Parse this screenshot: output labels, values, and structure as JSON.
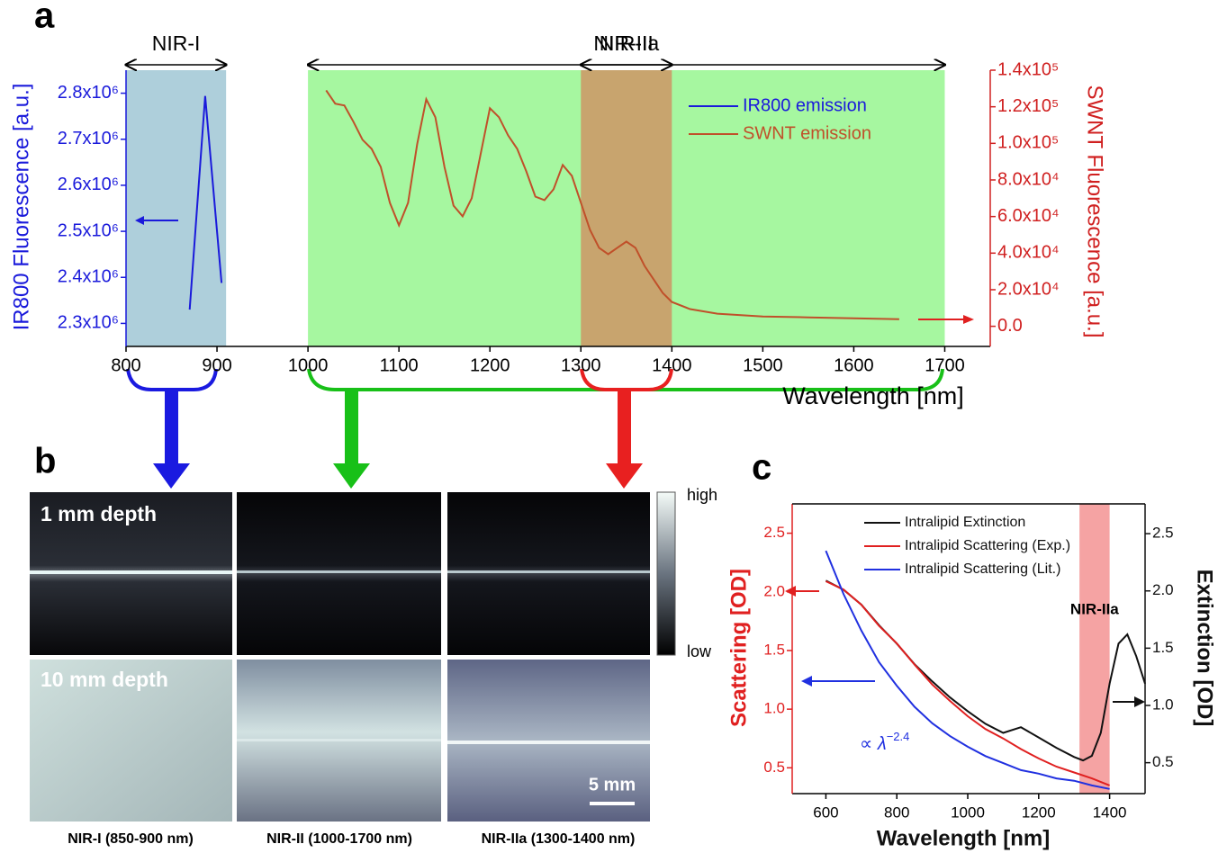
{
  "panel_labels": [
    "a",
    "b",
    "c"
  ],
  "imaging": {
    "row_labels": [
      "1 mm depth",
      "10 mm depth"
    ],
    "column_labels": [
      "NIR-I (850-900 nm)",
      "NIR-II (1000-1700 nm)",
      "NIR-IIa (1300-1400 nm)"
    ],
    "colorbar": {
      "high": "high",
      "low": "low"
    },
    "scale_bar": "5 mm"
  },
  "chart_data": [
    {
      "type": "line",
      "xlabel": "Wavelength [nm]",
      "ylabel": "IR800 Fluorescence [a.u.]",
      "y2label": "SWNT Fluorescence [a.u.]",
      "xlim": [
        800,
        1750
      ],
      "xticks": [
        800,
        900,
        1000,
        1100,
        1200,
        1300,
        1400,
        1500,
        1600,
        1700
      ],
      "ylim": [
        2250000,
        2850000
      ],
      "yticks": [
        {
          "value": 2300000,
          "label": "2.3x10⁶"
        },
        {
          "value": 2400000,
          "label": "2.4x10⁶"
        },
        {
          "value": 2500000,
          "label": "2.5x10⁶"
        },
        {
          "value": 2600000,
          "label": "2.6x10⁶"
        },
        {
          "value": 2700000,
          "label": "2.7x10⁶"
        },
        {
          "value": 2800000,
          "label": "2.8x10⁶"
        }
      ],
      "y2lim": [
        -11000,
        140000
      ],
      "y2ticks": [
        {
          "value": 0,
          "label": "0.0"
        },
        {
          "value": 20000,
          "label": "2.0x10⁴"
        },
        {
          "value": 40000,
          "label": "4.0x10⁴"
        },
        {
          "value": 60000,
          "label": "6.0x10⁴"
        },
        {
          "value": 80000,
          "label": "8.0x10⁴"
        },
        {
          "value": 100000,
          "label": "1.0x10⁵"
        },
        {
          "value": 120000,
          "label": "1.2x10⁵"
        },
        {
          "value": 140000,
          "label": "1.4x10⁵"
        }
      ],
      "regions": [
        {
          "name": "NIR-I",
          "range": [
            800,
            910
          ],
          "color": "#aecfdb"
        },
        {
          "name": "NIR-II",
          "range": [
            1000,
            1700
          ],
          "color": "#a6f7a0"
        },
        {
          "name": "NIR-IIa",
          "range": [
            1300,
            1400
          ],
          "color": "#c8a46e"
        }
      ],
      "legend": "upper right",
      "series": [
        {
          "name": "IR800 emission",
          "color": "#1a1adb",
          "x": [
            870,
            887,
            905
          ],
          "values": [
            2330000,
            2794000,
            2388000
          ]
        },
        {
          "name": "SWNT emission",
          "color": "#c0502a",
          "axis": "y2",
          "x": [
            1020,
            1030,
            1040,
            1050,
            1060,
            1070,
            1080,
            1090,
            1100,
            1110,
            1120,
            1130,
            1140,
            1150,
            1160,
            1170,
            1180,
            1190,
            1200,
            1210,
            1220,
            1230,
            1240,
            1250,
            1260,
            1270,
            1280,
            1290,
            1300,
            1310,
            1320,
            1330,
            1340,
            1350,
            1360,
            1370,
            1380,
            1390,
            1400,
            1420,
            1450,
            1500,
            1550,
            1600,
            1650
          ],
          "values": [
            129000,
            121700,
            120700,
            111800,
            102000,
            97000,
            87200,
            67500,
            55200,
            67500,
            99500,
            124100,
            114300,
            87200,
            66000,
            60100,
            70000,
            94600,
            119200,
            114300,
            104400,
            97000,
            84700,
            70900,
            69000,
            74900,
            88200,
            82300,
            67500,
            52700,
            42900,
            39400,
            42900,
            46300,
            42900,
            33000,
            25600,
            18200,
            13300,
            9400,
            6900,
            5400,
            4900,
            4400,
            3900
          ]
        }
      ]
    },
    {
      "type": "line",
      "xlabel": "Wavelength [nm]",
      "ylabel": "Scattering [OD]",
      "y2label": "Extinction [OD]",
      "xlim": [
        505,
        1500
      ],
      "xticks": [
        600,
        800,
        1000,
        1200,
        1400
      ],
      "ylim": [
        0.28,
        2.75
      ],
      "yticks": [
        0.5,
        {
          "value": 1,
          "label": "1.0"
        },
        1.5,
        {
          "value": 2,
          "label": "2.0"
        },
        2.5
      ],
      "y2lim": [
        0.23,
        2.76
      ],
      "y2ticks": [
        0.5,
        {
          "value": 1,
          "label": "1.0"
        },
        1.5,
        {
          "value": 2,
          "label": "2.0"
        },
        2.5
      ],
      "regions": [
        {
          "name": "NIR-IIa",
          "range": [
            1315,
            1400
          ],
          "color": "#f5a3a3"
        }
      ],
      "legend": "upper right",
      "power_law_label": {
        "text": "∝ λ",
        "exponent": "−2.4"
      },
      "series": [
        {
          "name": "Intralipid Extinction",
          "color": "#111111",
          "axis": "y2",
          "x": [
            600,
            650,
            700,
            750,
            800,
            850,
            900,
            950,
            1000,
            1050,
            1100,
            1150,
            1200,
            1250,
            1300,
            1325,
            1350,
            1375,
            1400,
            1425,
            1450,
            1475,
            1500
          ],
          "values": [
            2.09,
            2.01,
            1.88,
            1.7,
            1.54,
            1.36,
            1.21,
            1.07,
            0.95,
            0.84,
            0.76,
            0.81,
            0.72,
            0.63,
            0.55,
            0.52,
            0.56,
            0.76,
            1.19,
            1.54,
            1.62,
            1.43,
            1.19
          ]
        },
        {
          "name": "Intralipid Scattering (Exp.)",
          "color": "#e02020",
          "x": [
            600,
            650,
            700,
            750,
            800,
            850,
            900,
            950,
            1000,
            1050,
            1100,
            1150,
            1200,
            1250,
            1300,
            1350,
            1400
          ],
          "values": [
            2.09,
            2.02,
            1.89,
            1.71,
            1.56,
            1.38,
            1.21,
            1.07,
            0.94,
            0.83,
            0.75,
            0.66,
            0.58,
            0.51,
            0.46,
            0.41,
            0.35
          ]
        },
        {
          "name": "Intralipid Scattering (Lit.)",
          "color": "#2030e0",
          "x": [
            600,
            650,
            700,
            750,
            800,
            850,
            900,
            950,
            1000,
            1050,
            1100,
            1150,
            1200,
            1250,
            1300,
            1350,
            1400
          ],
          "values": [
            2.35,
            1.98,
            1.67,
            1.4,
            1.2,
            1.02,
            0.88,
            0.77,
            0.68,
            0.6,
            0.54,
            0.48,
            0.45,
            0.41,
            0.39,
            0.35,
            0.32
          ]
        }
      ]
    }
  ]
}
